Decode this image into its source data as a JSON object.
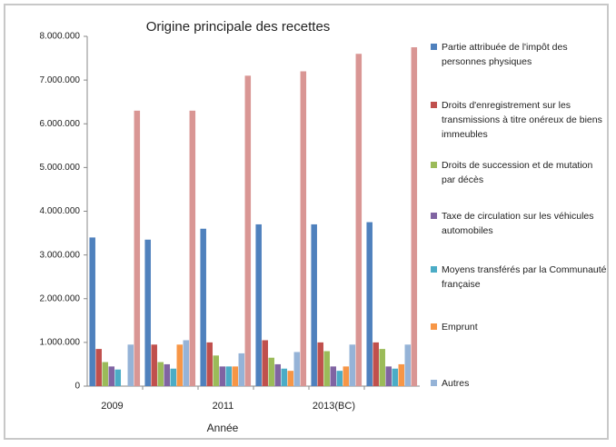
{
  "chart_data": {
    "type": "bar",
    "title": "Origine principale des recettes",
    "x_label": "Année",
    "categories": [
      "2009",
      null,
      "2011",
      null,
      "2013(BC)",
      null
    ],
    "series": [
      {
        "name": "Partie attribuée de l'impôt des personnes physiques",
        "color": "#4f81bd",
        "values": [
          3400000,
          3350000,
          3600000,
          3700000,
          3700000,
          3750000
        ]
      },
      {
        "name": "Droits d'enregistrement sur les transmissions à titre onéreux de biens immeubles",
        "color": "#c0504d",
        "values": [
          850000,
          950000,
          1000000,
          1050000,
          1000000,
          1000000
        ]
      },
      {
        "name": "Droits de succession et de mutation par décès",
        "color": "#9bbb59",
        "values": [
          550000,
          550000,
          700000,
          650000,
          800000,
          850000
        ]
      },
      {
        "name": "Taxe de circulation sur les véhicules automobiles",
        "color": "#8064a2",
        "values": [
          450000,
          500000,
          450000,
          500000,
          450000,
          450000
        ]
      },
      {
        "name": "Moyens transférés par la Communauté française",
        "color": "#4bacc6",
        "values": [
          380000,
          400000,
          450000,
          400000,
          350000,
          400000
        ]
      },
      {
        "name": "Emprunt",
        "color": "#f79646",
        "values": [
          0,
          950000,
          450000,
          350000,
          450000,
          500000
        ]
      },
      {
        "name": "Autres",
        "color": "#95b3d7",
        "values": [
          950000,
          1050000,
          750000,
          780000,
          950000,
          950000
        ]
      },
      {
        "color": "#d99694",
        "values": [
          6300000,
          6300000,
          7100000,
          7200000,
          7600000,
          7750000
        ]
      }
    ],
    "ylim": [
      0,
      8000000
    ],
    "yticks": [
      0,
      {
        "value": 1000000,
        "label": "1.000.000"
      },
      {
        "value": 2000000,
        "label": "2.000.000"
      },
      {
        "value": 3000000,
        "label": "3.000.000"
      },
      {
        "value": 4000000,
        "label": "4.000.000"
      },
      {
        "value": 5000000,
        "label": "5.000.000"
      },
      {
        "value": 6000000,
        "label": "6.000.000"
      },
      {
        "value": 7000000,
        "label": "7.000.000"
      },
      {
        "value": 8000000,
        "label": "8.000.000"
      }
    ],
    "grid": false
  }
}
